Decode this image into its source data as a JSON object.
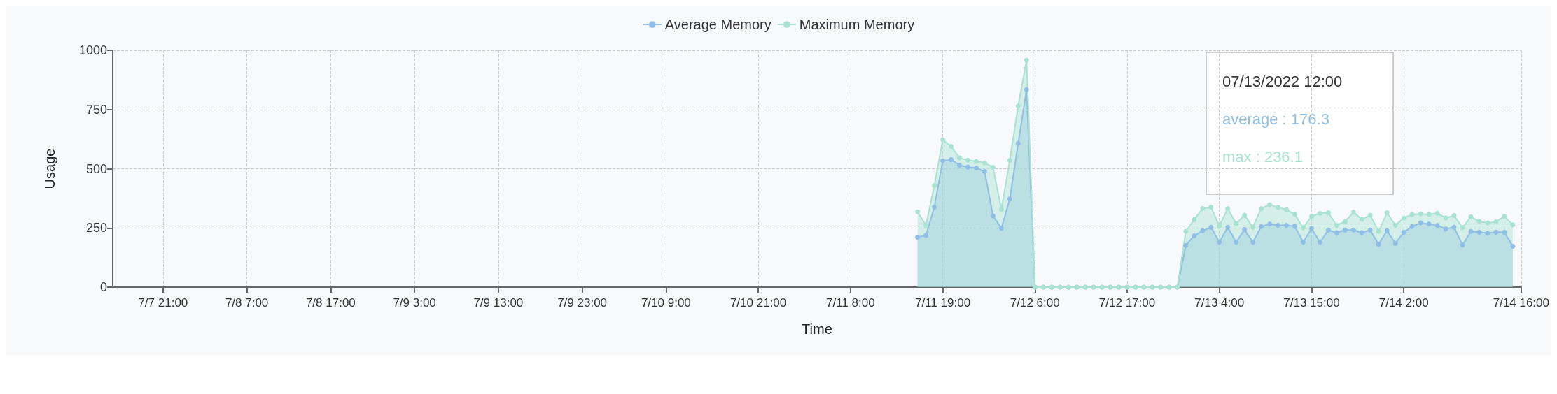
{
  "chart_data": {
    "type": "area",
    "xlabel": "Time",
    "ylabel": "Usage",
    "categories": [
      null,
      null,
      null,
      null,
      null,
      null,
      "7/7 21:00",
      null,
      null,
      null,
      null,
      null,
      null,
      null,
      null,
      null,
      "7/8 7:00",
      null,
      null,
      null,
      null,
      null,
      null,
      null,
      null,
      null,
      "7/8 17:00",
      null,
      null,
      null,
      null,
      null,
      null,
      null,
      null,
      null,
      "7/9 3:00",
      null,
      null,
      null,
      null,
      null,
      null,
      null,
      null,
      null,
      "7/9 13:00",
      null,
      null,
      null,
      null,
      null,
      null,
      null,
      null,
      null,
      "7/9 23:00",
      null,
      null,
      null,
      null,
      null,
      null,
      null,
      null,
      null,
      "7/10 9:00",
      null,
      null,
      null,
      null,
      null,
      null,
      null,
      null,
      null,
      null,
      "7/10 21:00",
      null,
      null,
      null,
      null,
      null,
      null,
      null,
      null,
      null,
      null,
      "7/11 8:00",
      null,
      null,
      null,
      null,
      null,
      null,
      null,
      null,
      null,
      null,
      "7/11 19:00",
      null,
      null,
      null,
      null,
      null,
      null,
      null,
      null,
      null,
      null,
      "7/12 6:00",
      null,
      null,
      null,
      null,
      null,
      null,
      null,
      null,
      null,
      null,
      "7/12 17:00",
      null,
      null,
      null,
      null,
      null,
      null,
      null,
      null,
      null,
      null,
      "7/13 4:00",
      null,
      null,
      null,
      null,
      null,
      null,
      null,
      null,
      null,
      null,
      "7/13 15:00",
      null,
      null,
      null,
      null,
      null,
      null,
      null,
      null,
      null,
      null,
      "7/14 2:00",
      null,
      null,
      null,
      null,
      null,
      null,
      null,
      null,
      null,
      null,
      null,
      null,
      null,
      "7/14 16:00"
    ],
    "series": [
      {
        "name": "Average Memory",
        "color": "#8fbfe6",
        "values": [
          null,
          null,
          null,
          null,
          null,
          null,
          null,
          null,
          null,
          null,
          null,
          null,
          null,
          null,
          null,
          null,
          null,
          null,
          null,
          null,
          null,
          null,
          null,
          null,
          null,
          null,
          null,
          null,
          null,
          null,
          null,
          null,
          null,
          null,
          null,
          null,
          null,
          null,
          null,
          null,
          null,
          null,
          null,
          null,
          null,
          null,
          null,
          null,
          null,
          null,
          null,
          null,
          null,
          null,
          null,
          null,
          null,
          null,
          null,
          null,
          null,
          null,
          null,
          null,
          null,
          null,
          null,
          null,
          null,
          null,
          null,
          null,
          null,
          null,
          null,
          null,
          null,
          null,
          null,
          null,
          null,
          null,
          null,
          null,
          null,
          null,
          null,
          null,
          null,
          null,
          null,
          null,
          null,
          null,
          null,
          null,
          211,
          219,
          338,
          533,
          538,
          515,
          507,
          503,
          488,
          301,
          249,
          372,
          607,
          834,
          0,
          0,
          0,
          0,
          0,
          0,
          0,
          0,
          0,
          0,
          0,
          0,
          0,
          0,
          0,
          0,
          0,
          0,
          176.3,
          217,
          238,
          253,
          190,
          253,
          190,
          243,
          190,
          256,
          266,
          261,
          261,
          257,
          190,
          248,
          190,
          241,
          230,
          241,
          241,
          230,
          241,
          181,
          238,
          185,
          232,
          256,
          271,
          266,
          261,
          246,
          253,
          178,
          235,
          232,
          228,
          232,
          232,
          173,
          null
        ]
      },
      {
        "name": "Maximum Memory",
        "color": "#a8e2d0",
        "values": [
          null,
          null,
          null,
          null,
          null,
          null,
          null,
          null,
          null,
          null,
          null,
          null,
          null,
          null,
          null,
          null,
          null,
          null,
          null,
          null,
          null,
          null,
          null,
          null,
          null,
          null,
          null,
          null,
          null,
          null,
          null,
          null,
          null,
          null,
          null,
          null,
          null,
          null,
          null,
          null,
          null,
          null,
          null,
          null,
          null,
          null,
          null,
          null,
          null,
          null,
          null,
          null,
          null,
          null,
          null,
          null,
          null,
          null,
          null,
          null,
          null,
          null,
          null,
          null,
          null,
          null,
          null,
          null,
          null,
          null,
          null,
          null,
          null,
          null,
          null,
          null,
          null,
          null,
          null,
          null,
          null,
          null,
          null,
          null,
          null,
          null,
          null,
          null,
          null,
          null,
          null,
          null,
          null,
          null,
          null,
          null,
          318,
          261,
          429,
          622,
          594,
          546,
          536,
          531,
          525,
          506,
          328,
          535,
          765,
          958,
          0,
          0,
          0,
          0,
          0,
          0,
          0,
          0,
          0,
          0,
          0,
          0,
          0,
          0,
          0,
          0,
          0,
          0,
          236.1,
          285,
          332,
          338,
          258,
          332,
          268,
          304,
          253,
          332,
          348,
          337,
          327,
          307,
          251,
          299,
          312,
          314,
          261,
          277,
          317,
          286,
          304,
          235,
          314,
          261,
          292,
          307,
          309,
          307,
          312,
          292,
          302,
          251,
          297,
          278,
          271,
          276,
          299,
          263,
          null
        ]
      }
    ],
    "ylim": [
      0,
      1000
    ],
    "yticks": [
      0,
      250,
      500,
      750,
      1000
    ],
    "grid": true,
    "legend": "top",
    "marker": "circle",
    "annotations": [
      "07/13/2022 12:00",
      "average : 176.3",
      "max : 236.1"
    ]
  }
}
